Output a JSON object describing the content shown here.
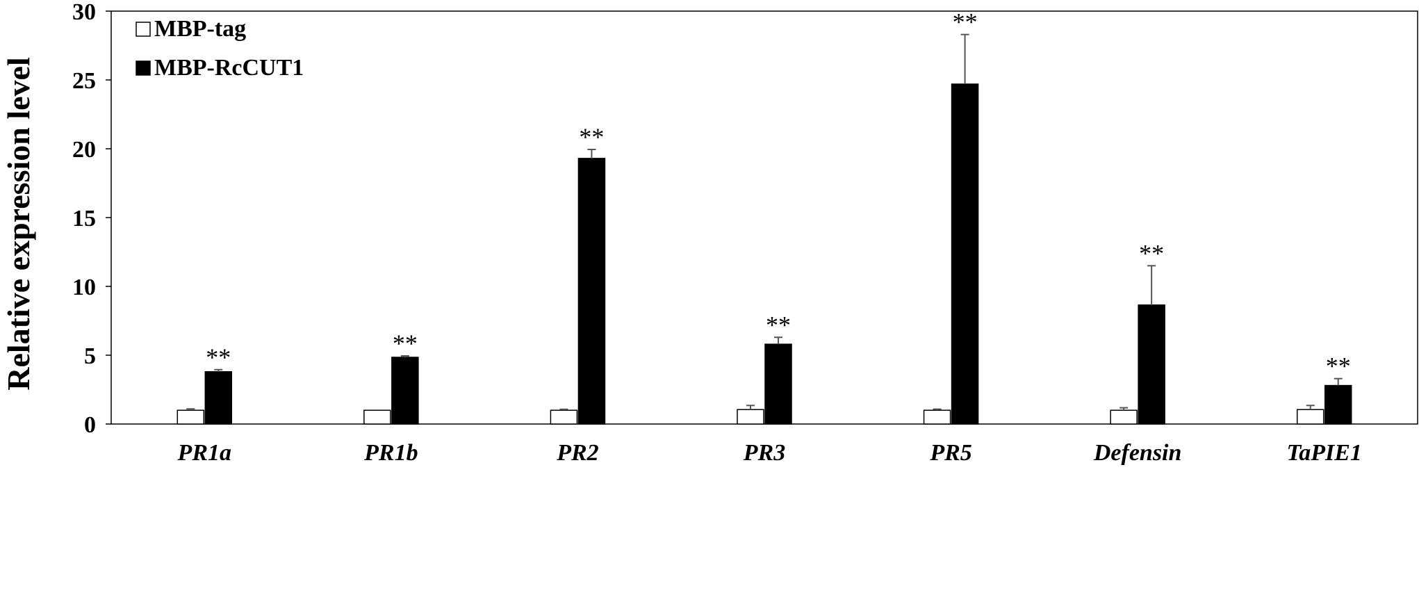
{
  "chart_data": {
    "type": "bar",
    "title": "",
    "xlabel": "",
    "ylabel": "Relative expression level",
    "ylim": [
      0,
      30
    ],
    "yticks": [
      0,
      5,
      10,
      15,
      20,
      25,
      30
    ],
    "grid": false,
    "legend_position": "top-left",
    "categories": [
      "PR1a",
      "PR1b",
      "PR2",
      "PR3",
      "PR5",
      "Defensin",
      "TaPIE1"
    ],
    "series": [
      {
        "name": "MBP-tag",
        "color": "#ffffff",
        "values": [
          1.0,
          1.0,
          1.0,
          1.05,
          1.0,
          1.0,
          1.05
        ],
        "errors": [
          0.1,
          0.0,
          0.07,
          0.3,
          0.08,
          0.18,
          0.3
        ]
      },
      {
        "name": "MBP-RcCUT1",
        "color": "#000000",
        "values": [
          3.8,
          4.85,
          19.3,
          5.8,
          24.7,
          8.65,
          2.8
        ],
        "errors": [
          0.15,
          0.1,
          0.65,
          0.5,
          3.6,
          2.85,
          0.5
        ],
        "annotations": [
          "**",
          "**",
          "**",
          "**",
          "**",
          "**",
          "**"
        ]
      }
    ]
  }
}
